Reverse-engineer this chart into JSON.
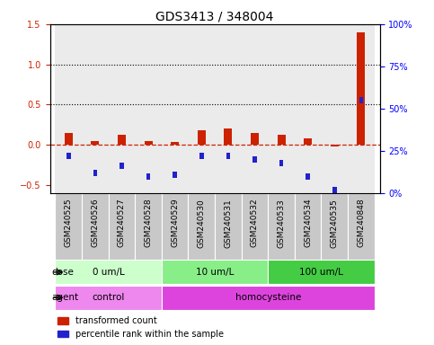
{
  "title": "GDS3413 / 348004",
  "samples": [
    "GSM240525",
    "GSM240526",
    "GSM240527",
    "GSM240528",
    "GSM240529",
    "GSM240530",
    "GSM240531",
    "GSM240532",
    "GSM240533",
    "GSM240534",
    "GSM240535",
    "GSM240848"
  ],
  "red_values": [
    0.15,
    0.05,
    0.12,
    0.05,
    0.04,
    0.18,
    0.2,
    0.15,
    0.13,
    0.08,
    -0.02,
    1.4
  ],
  "blue_values_pct": [
    22,
    12,
    16,
    10,
    11,
    22,
    22,
    20,
    18,
    10,
    2,
    55
  ],
  "ylim": [
    -0.6,
    1.5
  ],
  "right_ylim": [
    0,
    100
  ],
  "yticks_left": [
    -0.5,
    0.0,
    0.5,
    1.0,
    1.5
  ],
  "yticks_right_pct": [
    0,
    25,
    50,
    75,
    100
  ],
  "right_axis_labels": [
    "0%",
    "25%",
    "50%",
    "75%",
    "100%"
  ],
  "dotted_lines": [
    0.5,
    1.0
  ],
  "red_color": "#cc2200",
  "blue_color": "#2222cc",
  "dose_groups": [
    {
      "label": "0 um/L",
      "start": 0,
      "end": 4,
      "color": "#ccffcc"
    },
    {
      "label": "10 um/L",
      "start": 4,
      "end": 8,
      "color": "#88ee88"
    },
    {
      "label": "100 um/L",
      "start": 8,
      "end": 12,
      "color": "#44cc44"
    }
  ],
  "agent_groups": [
    {
      "label": "control",
      "start": 0,
      "end": 4,
      "color": "#ee88ee"
    },
    {
      "label": "homocysteine",
      "start": 4,
      "end": 12,
      "color": "#dd44dd"
    }
  ],
  "dose_label": "dose",
  "agent_label": "agent",
  "legend_red": "transformed count",
  "legend_blue": "percentile rank within the sample",
  "bar_width": 0.3,
  "tick_label_fontsize": 6.5,
  "title_fontsize": 10,
  "cell_color": "#c8c8c8",
  "plot_bg": "#ffffff"
}
